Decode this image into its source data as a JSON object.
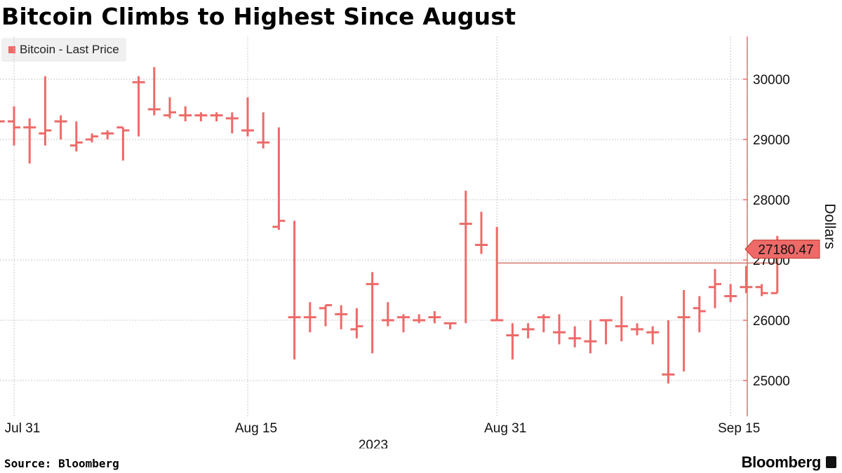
{
  "title": "Bitcoin Climbs to Highest Since August",
  "source": "Source: Bloomberg",
  "brand": "Bloomberg",
  "colors": {
    "series": "#ed6a68",
    "grid": "#c8c8c8",
    "axis": "#ed6a68"
  },
  "chart_data": {
    "type": "ohlc",
    "title": "Bitcoin Climbs to Highest Since August",
    "ylabel": "Dollars",
    "xlabel": "2023",
    "ylim": [
      24400,
      30700
    ],
    "yticks": [
      25000,
      26000,
      27000,
      28000,
      29000,
      30000
    ],
    "xticks": [
      {
        "label": "Jul 31",
        "date": "2023-07-31"
      },
      {
        "label": "Aug 15",
        "date": "2023-08-15"
      },
      {
        "label": "Aug 31",
        "date": "2023-08-31"
      },
      {
        "label": "Sep 15",
        "date": "2023-09-15"
      }
    ],
    "year_label": "2023",
    "legend": [
      {
        "name": "Bitcoin - Last Price"
      }
    ],
    "legend_position": "top-left",
    "grid": true,
    "last_price": {
      "value": 27180.47,
      "label": "27180.47",
      "reference_value": 26950
    },
    "series": [
      {
        "name": "Bitcoin - Last Price",
        "dates": [
          "2023-07-30",
          "2023-07-31",
          "2023-08-01",
          "2023-08-02",
          "2023-08-03",
          "2023-08-04",
          "2023-08-05",
          "2023-08-06",
          "2023-08-07",
          "2023-08-08",
          "2023-08-09",
          "2023-08-10",
          "2023-08-11",
          "2023-08-12",
          "2023-08-13",
          "2023-08-14",
          "2023-08-15",
          "2023-08-16",
          "2023-08-17",
          "2023-08-18",
          "2023-08-19",
          "2023-08-20",
          "2023-08-21",
          "2023-08-22",
          "2023-08-23",
          "2023-08-24",
          "2023-08-25",
          "2023-08-26",
          "2023-08-27",
          "2023-08-28",
          "2023-08-29",
          "2023-08-30",
          "2023-08-31",
          "2023-09-01",
          "2023-09-02",
          "2023-09-03",
          "2023-09-04",
          "2023-09-05",
          "2023-09-06",
          "2023-09-07",
          "2023-09-08",
          "2023-09-09",
          "2023-09-10",
          "2023-09-11",
          "2023-09-12",
          "2023-09-13",
          "2023-09-14",
          "2023-09-15",
          "2023-09-16",
          "2023-09-17",
          "2023-09-18"
        ],
        "open": [
          29300,
          29300,
          29200,
          29100,
          29300,
          28900,
          29000,
          29100,
          29200,
          29950,
          29500,
          29400,
          29400,
          29400,
          29400,
          29350,
          29150,
          28950,
          27550,
          26050,
          26050,
          26200,
          26100,
          25850,
          26600,
          26000,
          26050,
          26000,
          26050,
          25950,
          27600,
          27250,
          26000,
          25750,
          25850,
          26050,
          25800,
          25700,
          25650,
          26000,
          25900,
          25850,
          25800,
          25100,
          26050,
          26200,
          26550,
          26400,
          26550,
          26550,
          26450
        ],
        "high": [
          29500,
          29550,
          29350,
          30050,
          29400,
          29300,
          29100,
          29150,
          29200,
          30050,
          30200,
          29700,
          29550,
          29450,
          29450,
          29450,
          29700,
          29450,
          29200,
          27650,
          26300,
          26250,
          26250,
          26200,
          26800,
          26300,
          26100,
          26100,
          26150,
          25950,
          28150,
          27800,
          27550,
          25950,
          25950,
          26100,
          26100,
          25900,
          26000,
          26000,
          26400,
          25950,
          25900,
          26000,
          26500,
          26400,
          26850,
          26600,
          26900,
          26600,
          27400
        ],
        "low": [
          29050,
          28900,
          28600,
          28900,
          29000,
          28800,
          28950,
          29000,
          28650,
          29050,
          29400,
          29350,
          29300,
          29300,
          29300,
          29100,
          29050,
          28850,
          27500,
          25350,
          25800,
          25900,
          25850,
          25700,
          25450,
          25900,
          25800,
          25950,
          25950,
          25850,
          25950,
          27100,
          26000,
          25350,
          25700,
          25800,
          25600,
          25550,
          25450,
          25600,
          25650,
          25750,
          25600,
          24950,
          25150,
          25800,
          26200,
          26300,
          26450,
          26400,
          26450
        ],
        "close": [
          29300,
          29200,
          29200,
          29150,
          29300,
          28950,
          29050,
          29100,
          29150,
          29950,
          29500,
          29450,
          29400,
          29400,
          29400,
          29350,
          29150,
          28950,
          27650,
          26050,
          26050,
          26250,
          26100,
          25900,
          26600,
          26000,
          26050,
          26000,
          26050,
          25950,
          27600,
          27250,
          26000,
          25750,
          25850,
          26050,
          25800,
          25700,
          25650,
          26000,
          25900,
          25850,
          25800,
          25100,
          26050,
          26150,
          26600,
          26400,
          26550,
          26450,
          27180.47
        ]
      }
    ]
  }
}
